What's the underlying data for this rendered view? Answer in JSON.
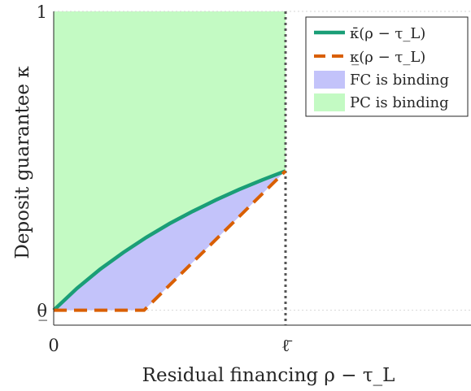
{
  "chart_data": {
    "type": "area",
    "xlabel": "Residual financing ρ − τ_L",
    "ylabel": "Deposit guarantee κ",
    "xlim": [
      0,
      1.8
    ],
    "ylim": [
      -0.05,
      1
    ],
    "x_ticks": [
      {
        "value": 0,
        "label": "0"
      },
      {
        "value": 1,
        "label": "ℓ̄"
      }
    ],
    "y_ticks": [
      {
        "value": 0,
        "label": "θ̲"
      },
      {
        "value": 1,
        "label": "1"
      }
    ],
    "vertical_line": {
      "x": 1,
      "style": "dotted",
      "color": "#555555"
    },
    "grid": "light dotted",
    "legend_position": "top-right",
    "series": [
      {
        "name": "κ̄(ρ − τ_L)",
        "style": "solid",
        "color": "#1a9e77",
        "x": [
          0,
          0.1,
          0.2,
          0.3,
          0.4,
          0.5,
          0.6,
          0.7,
          0.8,
          0.9,
          1.0
        ],
        "y": [
          0,
          0.073,
          0.137,
          0.193,
          0.244,
          0.29,
          0.331,
          0.369,
          0.404,
          0.436,
          0.466
        ]
      },
      {
        "name": "κ̲(ρ − τ_L)",
        "style": "dashed",
        "color": "#d95f02",
        "x": [
          0,
          0.39,
          1.0
        ],
        "y": [
          0,
          0,
          0.466
        ]
      }
    ],
    "regions": [
      {
        "name": "FC is binding",
        "color": "#c3c3fa"
      },
      {
        "name": "PC is binding",
        "color": "#c3fac3"
      }
    ]
  }
}
